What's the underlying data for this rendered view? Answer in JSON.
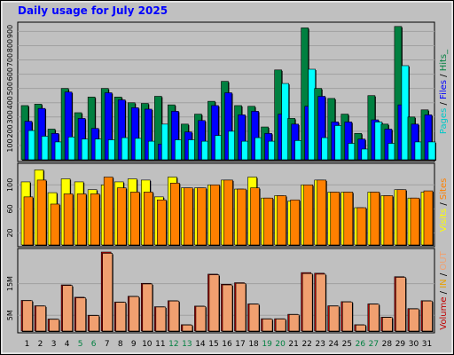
{
  "chart_data": {
    "type": "bar",
    "title": "Daily usage for July 2025",
    "categories": [
      "1",
      "2",
      "3",
      "4",
      "5",
      "6",
      "7",
      "8",
      "9",
      "10",
      "11",
      "12",
      "13",
      "14",
      "15",
      "16",
      "17",
      "18",
      "19",
      "20",
      "21",
      "22",
      "23",
      "24",
      "25",
      "26",
      "27",
      "28",
      "29",
      "30",
      "31"
    ],
    "weekend_days": [
      "5",
      "6",
      "12",
      "13",
      "19",
      "20",
      "26",
      "27"
    ],
    "panels": [
      {
        "name": "hits",
        "legend": [
          {
            "text": "Pages",
            "color": "#00c8c8"
          },
          {
            "text": " / ",
            "color": "#000000"
          },
          {
            "text": "Files",
            "color": "#0000ff"
          },
          {
            "text": " / ",
            "color": "#000000"
          },
          {
            "text": "Hits",
            "color": "#008040"
          },
          {
            "text": "_",
            "color": "#008040"
          }
        ],
        "yticks": [
          100,
          200,
          300,
          400,
          500,
          600,
          700,
          800,
          900
        ],
        "ylim": [
          0,
          940
        ],
        "series": [
          {
            "name": "Hits",
            "color": "#008040",
            "values": [
              380,
              390,
              215,
              500,
              330,
              440,
              500,
              440,
              400,
              395,
              445,
              385,
              250,
              320,
              410,
              550,
              380,
              375,
              230,
              630,
              290,
              925,
              500,
              430,
              320,
              185,
              450,
              250,
              935,
              300,
              350
            ]
          },
          {
            "name": "Files",
            "color": "#0000ff",
            "values": [
              270,
              360,
              185,
              475,
              290,
              220,
              470,
              420,
              365,
              355,
              110,
              340,
              195,
              275,
              380,
              470,
              315,
              340,
              185,
              320,
              250,
              375,
              445,
              265,
              265,
              145,
              280,
              215,
              385,
              250,
              315
            ]
          },
          {
            "name": "Pages",
            "color": "#00ffff",
            "values": [
              205,
              165,
              125,
              160,
              145,
              145,
              140,
              155,
              150,
              130,
              250,
              140,
              140,
              130,
              170,
              200,
              130,
              155,
              130,
              535,
              135,
              635,
              155,
              240,
              115,
              75,
              265,
              115,
              660,
              125,
              125
            ]
          }
        ]
      },
      {
        "name": "visits",
        "legend": [
          {
            "text": "Visits",
            "color": "#ffff00"
          },
          {
            "text": " / ",
            "color": "#000000"
          },
          {
            "text": "Sites",
            "color": "#ff8000"
          }
        ],
        "yticks": [
          20,
          60,
          100
        ],
        "ylim": [
          0,
          130
        ],
        "series": [
          {
            "name": "Visits",
            "color": "#ffff00",
            "values": [
              105,
              125,
              87,
              110,
              105,
              92,
              100,
              105,
              110,
              108,
              80,
              113,
              95,
              95,
              100,
              108,
              93,
              113,
              78,
              82,
              73,
              100,
              108,
              88,
              88,
              62,
              88,
              82,
              92,
              78,
              88
            ]
          },
          {
            "name": "Sites",
            "color": "#ff8000",
            "values": [
              80,
              108,
              68,
              85,
              85,
              85,
              113,
              95,
              88,
              88,
              75,
              103,
              95,
              95,
              100,
              108,
              93,
              95,
              78,
              82,
              75,
              100,
              108,
              88,
              88,
              62,
              88,
              82,
              92,
              78,
              90
            ]
          }
        ]
      },
      {
        "name": "volume",
        "legend": [
          {
            "text": "Volume",
            "color": "#c00000"
          },
          {
            "text": " / ",
            "color": "#000000"
          },
          {
            "text": "IN",
            "color": "#e8a000"
          },
          {
            "text": " / ",
            "color": "#000000"
          },
          {
            "text": "OUT",
            "color": "#f0a070"
          }
        ],
        "yticks": [
          5,
          15
        ],
        "ytick_labels": [
          "5M",
          "15M"
        ],
        "ylim": [
          0,
          25
        ],
        "series": [
          {
            "name": "Volume",
            "color": "#c00000",
            "values": [
              9.7,
              8.0,
              3.8,
              14.6,
              10.7,
              5.0,
              25.0,
              9.2,
              11.0,
              15.1,
              7.7,
              9.6,
              2.0,
              7.9,
              18.0,
              14.8,
              15.3,
              8.6,
              3.9,
              3.9,
              5.3,
              18.5,
              18.3,
              8.0,
              9.3,
              2.0,
              8.6,
              4.4,
              17.2,
              7.1,
              9.6
            ]
          },
          {
            "name": "OUT",
            "color": "#f0a070",
            "values": [
              9.6,
              7.9,
              3.7,
              14.4,
              10.5,
              4.9,
              24.6,
              9.1,
              10.9,
              14.9,
              7.6,
              9.5,
              1.9,
              7.8,
              17.8,
              14.6,
              15.1,
              8.5,
              3.8,
              3.8,
              5.2,
              18.2,
              18.0,
              7.9,
              9.2,
              1.9,
              8.5,
              4.3,
              17.0,
              7.0,
              9.5
            ]
          }
        ]
      }
    ]
  }
}
